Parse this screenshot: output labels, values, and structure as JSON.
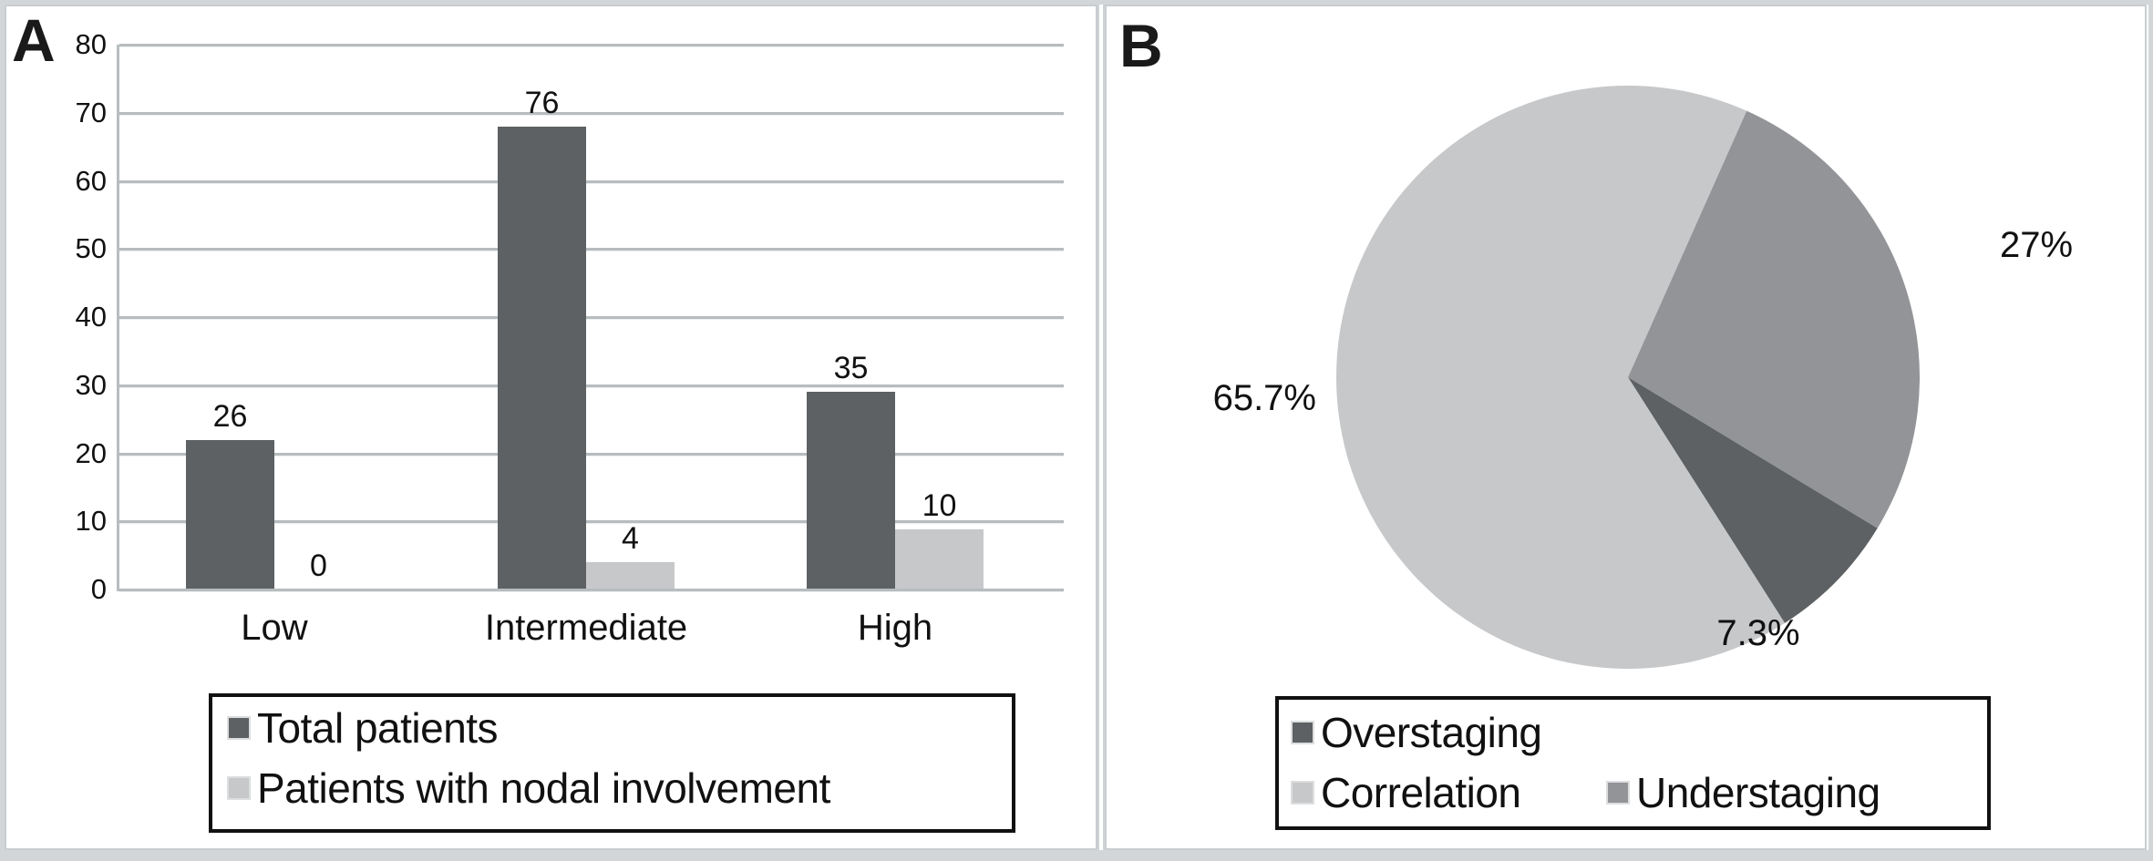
{
  "figure": {
    "panels": [
      {
        "letter": "A"
      },
      {
        "letter": "B"
      }
    ]
  },
  "palette": {
    "dark_gray": "#5e6163",
    "light_gray": "#c7c8ca",
    "medium_gray": "#929497",
    "gridline_gray": "#b7bcbf"
  },
  "chart_data": [
    {
      "type": "bar",
      "panel": "A",
      "categories": [
        "Low",
        "Intermediate",
        "High"
      ],
      "series": [
        {
          "name": "Total patients",
          "values": [
            26,
            76,
            35
          ],
          "drawn_heights": [
            22,
            68,
            29
          ],
          "color": "#5e6163"
        },
        {
          "name": "Patients with nodal involvement",
          "values": [
            0,
            4,
            10
          ],
          "drawn_heights": [
            0,
            4,
            8.8
          ],
          "color": "#c7c8ca"
        }
      ],
      "ylim": [
        0,
        80
      ],
      "yticks": [
        0,
        10,
        20,
        30,
        40,
        50,
        60,
        70,
        80
      ],
      "grid": true,
      "legend_position": "bottom",
      "legend_rows": [
        [
          "Total patients"
        ],
        [
          "Patients with nodal involvement"
        ]
      ]
    },
    {
      "type": "pie",
      "panel": "B",
      "slices": [
        {
          "name": "Understaging",
          "pct": 27,
          "label": "27%",
          "color": "#929497"
        },
        {
          "name": "Overstaging",
          "pct": 7.3,
          "label": "7.3%",
          "color": "#5e6163"
        },
        {
          "name": "Correlation",
          "pct": 65.7,
          "label": "65.7%",
          "color": "#c7c8ca"
        }
      ],
      "start_angle_deg_from_north": 24,
      "clockwise": true,
      "legend_position": "bottom",
      "legend_rows": [
        [
          "Overstaging"
        ],
        [
          "Correlation",
          "Understaging"
        ]
      ]
    }
  ]
}
